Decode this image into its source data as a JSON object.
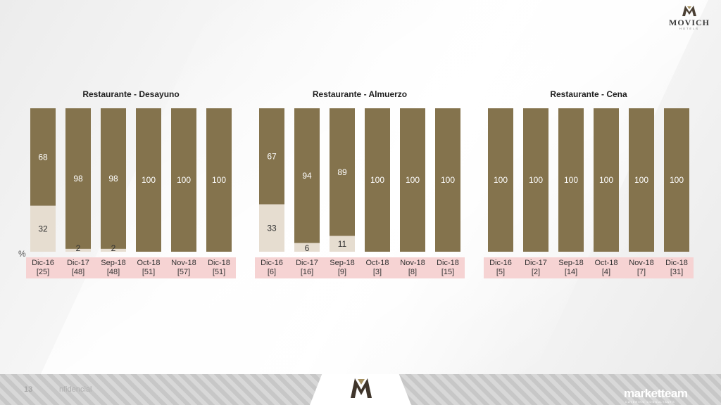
{
  "brand": {
    "name": "MOVICH",
    "sub": "HOTELS"
  },
  "axis_unit": "%",
  "footer": {
    "page": "13",
    "note": "nfidencial",
    "partner": "marketteam",
    "partner_sub": "CATERING CONSULTANTS"
  },
  "colors": {
    "primary": "#84734d",
    "secondary": "#e6ddd0",
    "band": "#f6d3d3"
  },
  "chart_data": [
    {
      "type": "bar",
      "title": "Restaurante - Desayuno",
      "categories": [
        "Dic-16",
        "Dic-17",
        "Sep-18",
        "Oct-18",
        "Nov-18",
        "Dic-18"
      ],
      "bases": [
        "[25]",
        "[48]",
        "[48]",
        "[51]",
        "[57]",
        "[51]"
      ],
      "series": [
        {
          "values": [
            68,
            98,
            98,
            100,
            100,
            100
          ]
        },
        {
          "values": [
            32,
            2,
            2,
            0,
            0,
            0
          ]
        }
      ],
      "ylim": [
        0,
        100
      ]
    },
    {
      "type": "bar",
      "title": "Restaurante - Almuerzo",
      "categories": [
        "Dic-16",
        "Dic-17",
        "Sep-18",
        "Oct-18",
        "Nov-18",
        "Dic-18"
      ],
      "bases": [
        "[6]",
        "[16]",
        "[9]",
        "[3]",
        "[8]",
        "[15]"
      ],
      "series": [
        {
          "values": [
            67,
            94,
            89,
            100,
            100,
            100
          ]
        },
        {
          "values": [
            33,
            6,
            11,
            0,
            0,
            0
          ]
        }
      ],
      "ylim": [
        0,
        100
      ]
    },
    {
      "type": "bar",
      "title": "Restaurante - Cena",
      "categories": [
        "Dic-16",
        "Dic-17",
        "Sep-18",
        "Oct-18",
        "Nov-18",
        "Dic-18"
      ],
      "bases": [
        "[5]",
        "[2]",
        "[14]",
        "[4]",
        "[7]",
        "[31]"
      ],
      "series": [
        {
          "values": [
            100,
            100,
            100,
            100,
            100,
            100
          ]
        },
        {
          "values": [
            0,
            0,
            0,
            0,
            0,
            0
          ]
        }
      ],
      "ylim": [
        0,
        100
      ]
    }
  ]
}
